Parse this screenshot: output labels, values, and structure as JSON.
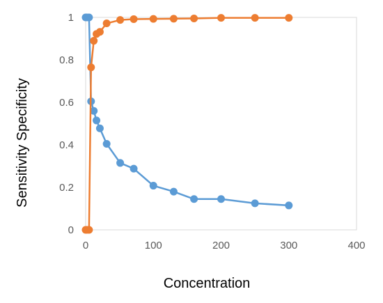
{
  "chart_data": {
    "type": "line",
    "xlabel": "Concentration",
    "ylabel": "Sensitivity  Specificity",
    "xlim": [
      0,
      400
    ],
    "ylim": [
      0,
      1
    ],
    "x_ticks": [
      0,
      100,
      200,
      300,
      400
    ],
    "y_ticks": [
      0,
      0.2,
      0.4,
      0.6,
      0.8,
      1
    ],
    "y_tick_labels": [
      "0",
      "0.2",
      "0.4",
      "0.6",
      "0.8",
      "1"
    ],
    "grid": false,
    "legend": "none",
    "series": [
      {
        "color": "#5B9BD5",
        "points": [
          [
            0,
            1
          ],
          [
            2,
            1
          ],
          [
            5,
            1
          ],
          [
            8,
            0.605
          ],
          [
            12,
            0.56
          ],
          [
            16,
            0.515
          ],
          [
            21,
            0.478
          ],
          [
            31,
            0.405
          ],
          [
            51,
            0.315
          ],
          [
            71,
            0.288
          ],
          [
            100,
            0.208
          ],
          [
            130,
            0.18
          ],
          [
            160,
            0.145
          ],
          [
            200,
            0.145
          ],
          [
            250,
            0.125
          ],
          [
            300,
            0.115
          ]
        ]
      },
      {
        "color": "#ED7D31",
        "points": [
          [
            0,
            0
          ],
          [
            2,
            0
          ],
          [
            5,
            0
          ],
          [
            8,
            0.765
          ],
          [
            12,
            0.89
          ],
          [
            16,
            0.922
          ],
          [
            21,
            0.932
          ],
          [
            31,
            0.972
          ],
          [
            51,
            0.988
          ],
          [
            71,
            0.992
          ],
          [
            100,
            0.993
          ],
          [
            130,
            0.994
          ],
          [
            160,
            0.995
          ],
          [
            200,
            0.998
          ],
          [
            250,
            0.998
          ],
          [
            300,
            0.998
          ]
        ]
      }
    ]
  }
}
